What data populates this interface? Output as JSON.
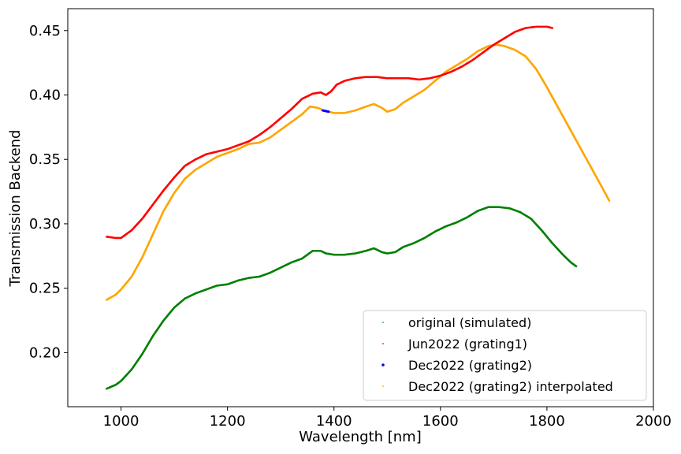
{
  "chart_data": {
    "type": "line",
    "title": "",
    "xlabel": "Wavelength [nm]",
    "ylabel": "Transmission Backend",
    "xlim": [
      900,
      2000
    ],
    "ylim": [
      0.158,
      0.467
    ],
    "xticks": [
      1000,
      1200,
      1400,
      1600,
      1800,
      2000
    ],
    "xtick_labels": [
      "1000",
      "1200",
      "1400",
      "1600",
      "1800",
      "2000"
    ],
    "yticks": [
      0.2,
      0.25,
      0.3,
      0.35,
      0.4,
      0.45
    ],
    "ytick_labels": [
      "0.20",
      "0.25",
      "0.30",
      "0.35",
      "0.40",
      "0.45"
    ],
    "grid": false,
    "legend_position": "lower-right",
    "series": [
      {
        "name": "original (simulated)",
        "color": "#1f77b4",
        "marker_size": 0.6,
        "points": []
      },
      {
        "name": "Jun2022 (grating1)",
        "color": "#ff0000",
        "marker_size": 2.6,
        "points": [
          [
            973,
            0.29
          ],
          [
            990,
            0.289
          ],
          [
            1000,
            0.289
          ],
          [
            1020,
            0.295
          ],
          [
            1040,
            0.304
          ],
          [
            1060,
            0.315
          ],
          [
            1080,
            0.326
          ],
          [
            1100,
            0.336
          ],
          [
            1120,
            0.345
          ],
          [
            1140,
            0.35
          ],
          [
            1160,
            0.354
          ],
          [
            1180,
            0.356
          ],
          [
            1200,
            0.358
          ],
          [
            1220,
            0.361
          ],
          [
            1240,
            0.364
          ],
          [
            1260,
            0.369
          ],
          [
            1280,
            0.375
          ],
          [
            1300,
            0.382
          ],
          [
            1320,
            0.389
          ],
          [
            1340,
            0.397
          ],
          [
            1360,
            0.401
          ],
          [
            1375,
            0.402
          ],
          [
            1385,
            0.4
          ],
          [
            1395,
            0.403
          ],
          [
            1405,
            0.408
          ],
          [
            1420,
            0.411
          ],
          [
            1440,
            0.413
          ],
          [
            1460,
            0.414
          ],
          [
            1480,
            0.414
          ],
          [
            1500,
            0.413
          ],
          [
            1520,
            0.413
          ],
          [
            1540,
            0.413
          ],
          [
            1560,
            0.412
          ],
          [
            1580,
            0.413
          ],
          [
            1600,
            0.415
          ],
          [
            1620,
            0.418
          ],
          [
            1640,
            0.422
          ],
          [
            1660,
            0.427
          ],
          [
            1680,
            0.433
          ],
          [
            1700,
            0.439
          ],
          [
            1720,
            0.444
          ],
          [
            1740,
            0.449
          ],
          [
            1760,
            0.452
          ],
          [
            1780,
            0.453
          ],
          [
            1800,
            0.453
          ],
          [
            1810,
            0.452
          ]
        ]
      },
      {
        "name": "Dec2022 (grating2)",
        "color": "#0000ff",
        "marker_size": 3,
        "points": [
          [
            1379,
            0.388
          ],
          [
            1390,
            0.387
          ]
        ]
      },
      {
        "name": "Dec2022 (grating2) interpolated",
        "color": "#ffa500",
        "marker_size": 2.6,
        "points": [
          [
            973,
            0.241
          ],
          [
            990,
            0.245
          ],
          [
            1000,
            0.249
          ],
          [
            1020,
            0.259
          ],
          [
            1040,
            0.274
          ],
          [
            1060,
            0.292
          ],
          [
            1080,
            0.31
          ],
          [
            1100,
            0.324
          ],
          [
            1120,
            0.335
          ],
          [
            1140,
            0.342
          ],
          [
            1160,
            0.347
          ],
          [
            1180,
            0.352
          ],
          [
            1200,
            0.355
          ],
          [
            1220,
            0.358
          ],
          [
            1240,
            0.362
          ],
          [
            1260,
            0.363
          ],
          [
            1280,
            0.367
          ],
          [
            1300,
            0.373
          ],
          [
            1320,
            0.379
          ],
          [
            1340,
            0.385
          ],
          [
            1355,
            0.391
          ],
          [
            1370,
            0.39
          ],
          [
            1380,
            0.388
          ],
          [
            1400,
            0.386
          ],
          [
            1420,
            0.386
          ],
          [
            1440,
            0.388
          ],
          [
            1460,
            0.391
          ],
          [
            1475,
            0.393
          ],
          [
            1490,
            0.39
          ],
          [
            1500,
            0.387
          ],
          [
            1515,
            0.389
          ],
          [
            1530,
            0.394
          ],
          [
            1550,
            0.399
          ],
          [
            1570,
            0.404
          ],
          [
            1590,
            0.411
          ],
          [
            1610,
            0.418
          ],
          [
            1630,
            0.423
          ],
          [
            1650,
            0.428
          ],
          [
            1670,
            0.434
          ],
          [
            1690,
            0.438
          ],
          [
            1705,
            0.439
          ],
          [
            1720,
            0.438
          ],
          [
            1740,
            0.435
          ],
          [
            1760,
            0.43
          ],
          [
            1780,
            0.42
          ],
          [
            1800,
            0.406
          ],
          [
            1820,
            0.391
          ],
          [
            1840,
            0.376
          ],
          [
            1860,
            0.361
          ],
          [
            1880,
            0.346
          ],
          [
            1900,
            0.331
          ],
          [
            1917,
            0.318
          ]
        ]
      },
      {
        "name": "",
        "color": "#008000",
        "marker_size": 2.6,
        "points": [
          [
            973,
            0.172
          ],
          [
            990,
            0.175
          ],
          [
            1000,
            0.178
          ],
          [
            1020,
            0.187
          ],
          [
            1040,
            0.199
          ],
          [
            1060,
            0.213
          ],
          [
            1080,
            0.225
          ],
          [
            1100,
            0.235
          ],
          [
            1120,
            0.242
          ],
          [
            1140,
            0.246
          ],
          [
            1160,
            0.249
          ],
          [
            1180,
            0.252
          ],
          [
            1200,
            0.253
          ],
          [
            1220,
            0.256
          ],
          [
            1240,
            0.258
          ],
          [
            1260,
            0.259
          ],
          [
            1280,
            0.262
          ],
          [
            1300,
            0.266
          ],
          [
            1320,
            0.27
          ],
          [
            1340,
            0.273
          ],
          [
            1360,
            0.279
          ],
          [
            1375,
            0.279
          ],
          [
            1385,
            0.277
          ],
          [
            1400,
            0.276
          ],
          [
            1420,
            0.276
          ],
          [
            1440,
            0.277
          ],
          [
            1460,
            0.279
          ],
          [
            1475,
            0.281
          ],
          [
            1490,
            0.278
          ],
          [
            1500,
            0.277
          ],
          [
            1515,
            0.278
          ],
          [
            1530,
            0.282
          ],
          [
            1550,
            0.285
          ],
          [
            1570,
            0.289
          ],
          [
            1590,
            0.294
          ],
          [
            1610,
            0.298
          ],
          [
            1630,
            0.301
          ],
          [
            1650,
            0.305
          ],
          [
            1670,
            0.31
          ],
          [
            1690,
            0.313
          ],
          [
            1710,
            0.313
          ],
          [
            1730,
            0.312
          ],
          [
            1750,
            0.309
          ],
          [
            1770,
            0.304
          ],
          [
            1790,
            0.295
          ],
          [
            1810,
            0.285
          ],
          [
            1830,
            0.276
          ],
          [
            1845,
            0.27
          ],
          [
            1855,
            0.267
          ]
        ]
      }
    ]
  }
}
